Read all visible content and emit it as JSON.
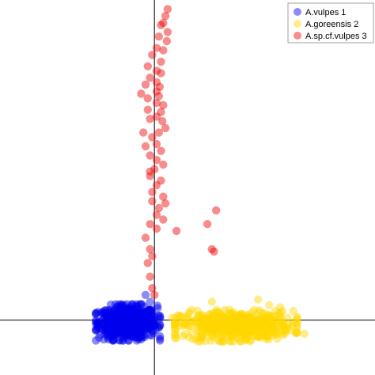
{
  "chart_data": {
    "type": "scatter",
    "title": "",
    "xlabel": "",
    "ylabel": "",
    "xlim": [
      -3.5,
      5.0
    ],
    "ylim": [
      -1.2,
      7.0
    ],
    "grid": false,
    "legend_position": "top-right",
    "axes_lines": "crosshair at x=0, y=0",
    "series": [
      {
        "name": "A.vulpes 1",
        "color": "#0000ee",
        "cluster": {
          "center": [
            -0.6,
            -0.05
          ],
          "spread": [
            0.55,
            0.3
          ],
          "count": 650
        },
        "points": [
          [
            -0.95,
            -0.15
          ],
          [
            -0.7,
            -0.2
          ],
          [
            -0.5,
            -0.2
          ],
          [
            -0.85,
            0.1
          ],
          [
            -0.4,
            0.3
          ],
          [
            -0.2,
            0.55
          ],
          [
            -0.1,
            0.4
          ],
          [
            -1.0,
            -0.35
          ]
        ]
      },
      {
        "name": "A.goreensis 2",
        "color": "#ffd700",
        "cluster": {
          "center": [
            1.85,
            -0.12
          ],
          "spread": [
            1.05,
            0.26
          ],
          "count": 520
        },
        "points": [
          [
            0.4,
            0.05
          ],
          [
            1.3,
            0.4
          ],
          [
            2.35,
            0.45
          ],
          [
            2.6,
            0.33
          ],
          [
            2.85,
            0.28
          ],
          [
            3.15,
            0.2
          ],
          [
            3.4,
            -0.3
          ],
          [
            0.7,
            -0.3
          ]
        ]
      },
      {
        "name": "A.sp.cf.vulpes 3",
        "color": "#ee0000",
        "points": [
          [
            0.3,
            6.8
          ],
          [
            0.25,
            6.65
          ],
          [
            0.2,
            6.5
          ],
          [
            0.3,
            6.3
          ],
          [
            0.15,
            6.45
          ],
          [
            0.28,
            6.1
          ],
          [
            0.1,
            6.2
          ],
          [
            0.05,
            5.95
          ],
          [
            0.2,
            5.9
          ],
          [
            -0.05,
            5.8
          ],
          [
            0.15,
            5.65
          ],
          [
            -0.15,
            5.55
          ],
          [
            0.05,
            5.45
          ],
          [
            0.15,
            5.4
          ],
          [
            -0.1,
            5.3
          ],
          [
            0.05,
            5.2
          ],
          [
            0.12,
            5.1
          ],
          [
            -0.2,
            5.15
          ],
          [
            0.05,
            5.0
          ],
          [
            0.1,
            4.9
          ],
          [
            -0.15,
            4.85
          ],
          [
            0.05,
            4.75
          ],
          [
            0.2,
            4.7
          ],
          [
            0.15,
            4.55
          ],
          [
            0.05,
            4.45
          ],
          [
            0.18,
            4.35
          ],
          [
            -0.1,
            4.4
          ],
          [
            0.25,
            4.2
          ],
          [
            0.1,
            4.1
          ],
          [
            -0.05,
            4.0
          ],
          [
            0.05,
            3.85
          ],
          [
            -0.2,
            3.8
          ],
          [
            0.15,
            3.7
          ],
          [
            -0.1,
            3.6
          ],
          [
            0.05,
            3.5
          ],
          [
            0.2,
            3.4
          ],
          [
            0.0,
            3.3
          ],
          [
            -0.1,
            3.15
          ],
          [
            0.15,
            3.05
          ],
          [
            0.05,
            2.95
          ],
          [
            -0.05,
            2.8
          ],
          [
            0.2,
            2.7
          ],
          [
            -0.05,
            2.6
          ],
          [
            0.1,
            2.45
          ],
          [
            0.05,
            2.3
          ],
          [
            0.2,
            2.2
          ],
          [
            -0.1,
            2.1
          ],
          [
            0.05,
            2.0
          ],
          [
            -0.2,
            1.8
          ],
          [
            -0.1,
            1.55
          ],
          [
            -0.15,
            1.25
          ],
          [
            -0.1,
            0.95
          ],
          [
            -0.05,
            0.7
          ],
          [
            0.0,
            0.55
          ],
          [
            0.5,
            1.95
          ],
          [
            1.4,
            2.4
          ],
          [
            1.2,
            2.1
          ],
          [
            1.3,
            1.55
          ],
          [
            1.35,
            1.5
          ],
          [
            -0.3,
            4.95
          ],
          [
            -0.15,
            4.6
          ],
          [
            -0.25,
            4.1
          ],
          [
            -0.1,
            3.25
          ],
          [
            0.25,
            2.55
          ],
          [
            -0.05,
            1.4
          ]
        ]
      }
    ]
  }
}
